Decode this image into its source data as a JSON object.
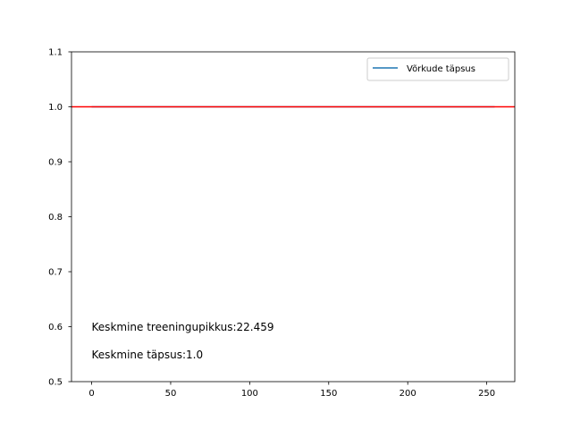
{
  "chart_data": {
    "type": "line",
    "title": "",
    "xlabel": "",
    "ylabel": "",
    "xlim": [
      -12.75,
      267.75
    ],
    "ylim": [
      0.5,
      1.1
    ],
    "grid": false,
    "legend_position": "upper right",
    "x_ticks": [
      0,
      50,
      100,
      150,
      200,
      250
    ],
    "y_ticks": [
      0.5,
      0.6,
      0.7,
      0.8,
      0.9,
      1.0,
      1.1
    ],
    "x_tick_labels": [
      "0",
      "50",
      "100",
      "150",
      "200",
      "250"
    ],
    "y_tick_labels": [
      "0.5",
      "0.6",
      "0.7",
      "0.8",
      "0.9",
      "1.0",
      "1.1"
    ],
    "series": [
      {
        "name": "Võrkude täpsus",
        "color": "#1f77b4",
        "x": [
          0,
          50,
          100,
          150,
          200,
          255
        ],
        "values": [
          1.0,
          1.0,
          1.0,
          1.0,
          1.0,
          1.0
        ]
      }
    ],
    "reference_line": {
      "y": 1.0,
      "color": "#ff0000"
    },
    "annotations": [
      {
        "text": "Keskmine treeningupikkus:22.459",
        "x": 0,
        "y": 0.6
      },
      {
        "text": "Keskmine täpsus:1.0",
        "x": 0,
        "y": 0.55
      }
    ]
  }
}
